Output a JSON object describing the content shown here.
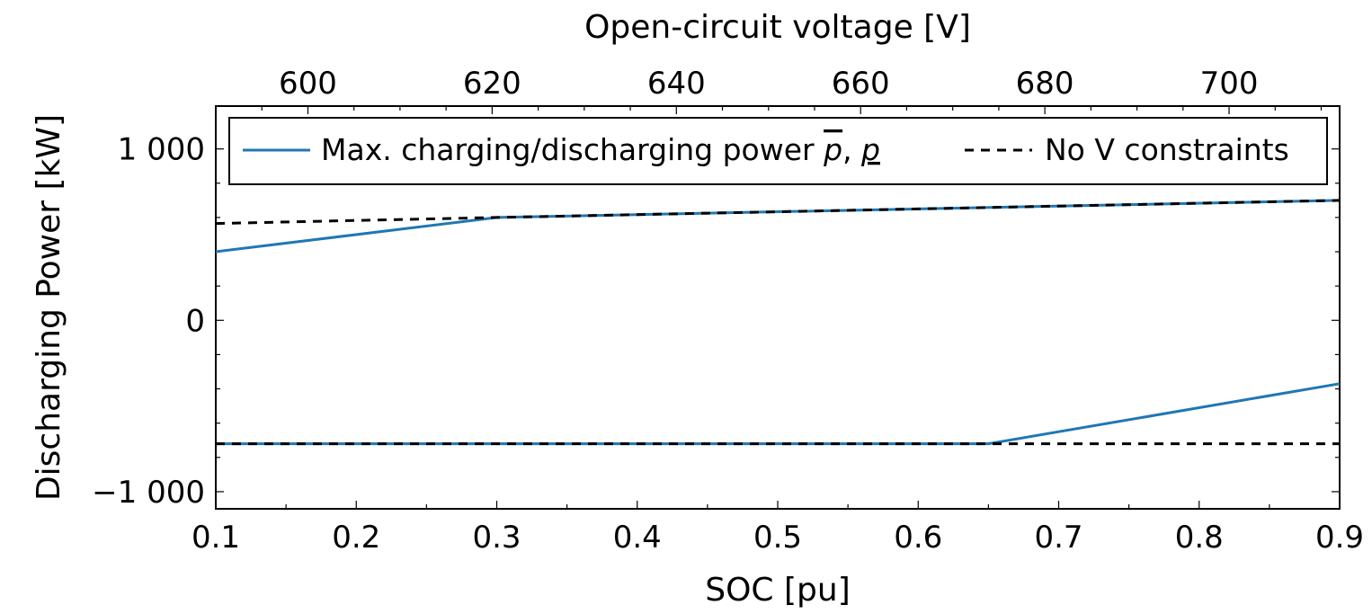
{
  "chart_data": {
    "type": "line",
    "xlabel": "SOC [pu]",
    "ylabel": "Discharging Power [kW]",
    "x2label": "Open-circuit voltage [V]",
    "xlim": [
      0.1,
      0.9
    ],
    "ylim": [
      -1100,
      1250
    ],
    "x2lim": [
      590,
      712
    ],
    "xticks": [
      0.1,
      0.2,
      0.3,
      0.4,
      0.5,
      0.6,
      0.7,
      0.8,
      0.9
    ],
    "xtick_labels": [
      "0.1",
      "0.2",
      "0.3",
      "0.4",
      "0.5",
      "0.6",
      "0.7",
      "0.8",
      "0.9"
    ],
    "yticks": [
      -1000,
      0,
      1000
    ],
    "ytick_labels": [
      "−1 000",
      "0",
      "1 000"
    ],
    "x2ticks": [
      600,
      620,
      640,
      660,
      680,
      700
    ],
    "x2tick_labels": [
      "600",
      "620",
      "640",
      "660",
      "680",
      "700"
    ],
    "grid": false,
    "legend_position": "top",
    "series": [
      {
        "name": "Max. charging/discharging power p̄, p̲",
        "color": "#1f77b4",
        "style": "solid",
        "segments": [
          {
            "x": [
              0.1,
              0.3,
              0.9
            ],
            "y": [
              400,
              600,
              700
            ]
          },
          {
            "x": [
              0.1,
              0.65,
              0.9
            ],
            "y": [
              -720,
              -720,
              -370
            ]
          }
        ]
      },
      {
        "name": "No V constraints",
        "color": "#000000",
        "style": "dashed",
        "segments": [
          {
            "x": [
              0.1,
              0.3,
              0.9
            ],
            "y": [
              565,
              600,
              700
            ]
          },
          {
            "x": [
              0.1,
              0.9
            ],
            "y": [
              -720,
              -720
            ]
          }
        ]
      }
    ],
    "legend": {
      "entry1_prefix": "Max.  charging/discharging power ",
      "entry1_pbar": "p",
      "entry1_sep": ", ",
      "entry1_punder": "p",
      "entry2": "No V constraints"
    }
  }
}
